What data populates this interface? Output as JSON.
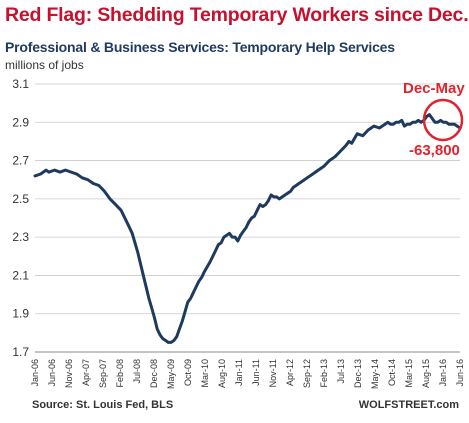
{
  "chart_data": {
    "type": "line",
    "title": "Red Flag: Shedding Temporary Workers since Dec.",
    "subtitle": "Professional & Business Services: Temporary Help Services",
    "ylabel": "millions of jobs",
    "ylim": [
      1.7,
      3.1
    ],
    "yticks": [
      "3.1",
      "2.9",
      "2.7",
      "2.5",
      "2.3",
      "2.1",
      "1.9",
      "1.7"
    ],
    "grid": true,
    "xticks": [
      "Jan-06",
      "Jun-06",
      "Nov-06",
      "Apr-07",
      "Sep-07",
      "Feb-08",
      "Jul-08",
      "Dec-08",
      "May-09",
      "Oct-09",
      "Mar-10",
      "Aug-10",
      "Jan-11",
      "Jun-11",
      "Nov-11",
      "Apr-12",
      "Sep-12",
      "Feb-13",
      "Jul-13",
      "Dec-13",
      "May-14",
      "Oct-14",
      "Mar-15",
      "Aug-15",
      "Jan-16",
      "Jun-16"
    ],
    "series": [
      {
        "name": "",
        "color": "#1f3a5f",
        "x": [
          0,
          2,
          4,
          5,
          7,
          9,
          11,
          13,
          15,
          17,
          19,
          21,
          23,
          25,
          27,
          29,
          31,
          33,
          35,
          37,
          39,
          41,
          42,
          43,
          44,
          45,
          46,
          47,
          48,
          49,
          50,
          51,
          52,
          53,
          54,
          55,
          56,
          57,
          58,
          59,
          60,
          61,
          63,
          64,
          65,
          66,
          67,
          68,
          69,
          70,
          71,
          72,
          73,
          74,
          75,
          76,
          77,
          78,
          79,
          80,
          81,
          82,
          83,
          84,
          85,
          86,
          87,
          88,
          89,
          90,
          91,
          92,
          93,
          94,
          95,
          96,
          98,
          100,
          102,
          104,
          106,
          108,
          110,
          112,
          113,
          114,
          116,
          118,
          120,
          122,
          124,
          126
        ],
        "values": [
          2.62,
          2.63,
          2.65,
          2.64,
          2.65,
          2.64,
          2.65,
          2.64,
          2.63,
          2.61,
          2.6,
          2.58,
          2.57,
          2.54,
          2.5,
          2.47,
          2.44,
          2.38,
          2.32,
          2.22,
          2.1,
          1.98,
          1.93,
          1.88,
          1.82,
          1.79,
          1.77,
          1.76,
          1.75,
          1.75,
          1.76,
          1.78,
          1.82,
          1.86,
          1.91,
          1.96,
          1.98,
          2.01,
          2.04,
          2.07,
          2.09,
          2.12,
          2.17,
          2.2,
          2.23,
          2.26,
          2.27,
          2.3,
          2.31,
          2.32,
          2.3,
          2.3,
          2.28,
          2.31,
          2.33,
          2.35,
          2.38,
          2.4,
          2.41,
          2.44,
          2.47,
          2.46,
          2.47,
          2.49,
          2.52,
          2.51,
          2.51,
          2.5,
          2.51,
          2.52,
          2.53,
          2.54,
          2.56,
          2.57,
          2.58,
          2.59,
          2.61,
          2.63,
          2.65,
          2.67,
          2.7,
          2.72,
          2.75,
          2.78,
          2.8,
          2.79,
          2.84,
          2.83,
          2.86,
          2.88,
          2.87,
          2.89
        ]
      },
      {
        "name": "",
        "color": "#1f3a5f",
        "x": [
          126,
          127,
          128,
          129,
          130,
          131,
          132,
          133,
          134,
          135,
          136,
          137,
          138,
          139,
          140,
          141,
          142,
          143,
          144,
          145,
          146,
          147,
          148,
          149,
          150,
          151,
          152,
          153
        ],
        "values": [
          2.89,
          2.9,
          2.89,
          2.89,
          2.9,
          2.9,
          2.91,
          2.88,
          2.89,
          2.89,
          2.9,
          2.9,
          2.91,
          2.9,
          2.91,
          2.93,
          2.94,
          2.92,
          2.9,
          2.9,
          2.91,
          2.9,
          2.9,
          2.89,
          2.89,
          2.89,
          2.88,
          2.87
        ]
      }
    ],
    "annotations": [
      {
        "text": "Dec-May",
        "color": "#e0242f"
      },
      {
        "text": "-63,800",
        "color": "#e0242f"
      }
    ],
    "source": "Source: St. Louis Fed, BLS",
    "brand": "WOLFSTREET.com"
  }
}
